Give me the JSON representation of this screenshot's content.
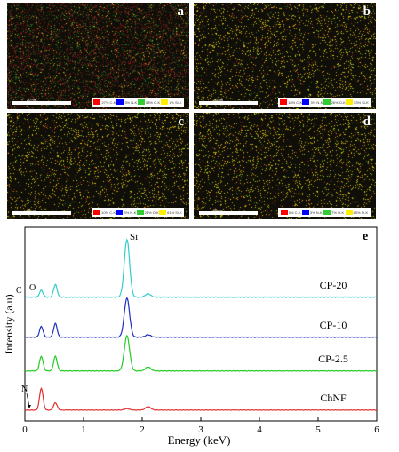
{
  "panels": [
    {
      "label": "a",
      "scale": "20 nm",
      "legend": [
        "27% C-K",
        "3% N-K",
        "58% O-K",
        "1% Si-K"
      ],
      "density": 0.18,
      "yellow": 0.15
    },
    {
      "label": "b",
      "scale": "20 nm",
      "legend": [
        "18% C-K",
        "3% N-K",
        "26% O-K",
        "53% Si-K"
      ],
      "density": 0.32,
      "yellow": 0.85
    },
    {
      "label": "c",
      "scale": "20 nm",
      "legend": [
        "10% C-K",
        "3% N-K",
        "26% O-K",
        "61% Si-K"
      ],
      "density": 0.45,
      "yellow": 0.85
    },
    {
      "label": "d",
      "scale": "20 nm",
      "legend": [
        "5% C-K",
        "3% N-K",
        "7% O-K",
        "85% Si-K"
      ],
      "density": 0.42,
      "yellow": 0.9
    }
  ],
  "legend_colors": [
    "#ff0000",
    "#0000ff",
    "#33cc33",
    "#ffee00"
  ],
  "spectrum": {
    "panel_label": "e",
    "peak_si": "Si",
    "peak_c": "C",
    "peak_o": "O",
    "peak_n": "N"
  },
  "chart_data": {
    "type": "line",
    "xlabel": "Energy (keV)",
    "ylabel": "Intensity (a.u)",
    "xlim": [
      0,
      6
    ],
    "xticks": [
      "0",
      "1",
      "2",
      "3",
      "4",
      "5",
      "6"
    ],
    "series": [
      {
        "name": "CP-20",
        "color": "#33cccc",
        "peaks": [
          {
            "x": 0.28,
            "h": 0.12
          },
          {
            "x": 0.52,
            "h": 0.22
          },
          {
            "x": 1.74,
            "h": 1.0
          },
          {
            "x": 2.1,
            "h": 0.06
          }
        ]
      },
      {
        "name": "CP-10",
        "color": "#1f2fbf",
        "peaks": [
          {
            "x": 0.28,
            "h": 0.22
          },
          {
            "x": 0.52,
            "h": 0.28
          },
          {
            "x": 1.74,
            "h": 0.8
          },
          {
            "x": 2.1,
            "h": 0.05
          }
        ]
      },
      {
        "name": "CP-2.5",
        "color": "#22cc22",
        "peaks": [
          {
            "x": 0.28,
            "h": 0.3
          },
          {
            "x": 0.52,
            "h": 0.3
          },
          {
            "x": 1.74,
            "h": 0.72
          },
          {
            "x": 2.1,
            "h": 0.08
          }
        ]
      },
      {
        "name": "ChNF",
        "color": "#e03030",
        "peaks": [
          {
            "x": 0.28,
            "h": 0.65
          },
          {
            "x": 0.52,
            "h": 0.22
          },
          {
            "x": 1.74,
            "h": 0.04
          },
          {
            "x": 2.1,
            "h": 0.1
          }
        ]
      }
    ]
  }
}
